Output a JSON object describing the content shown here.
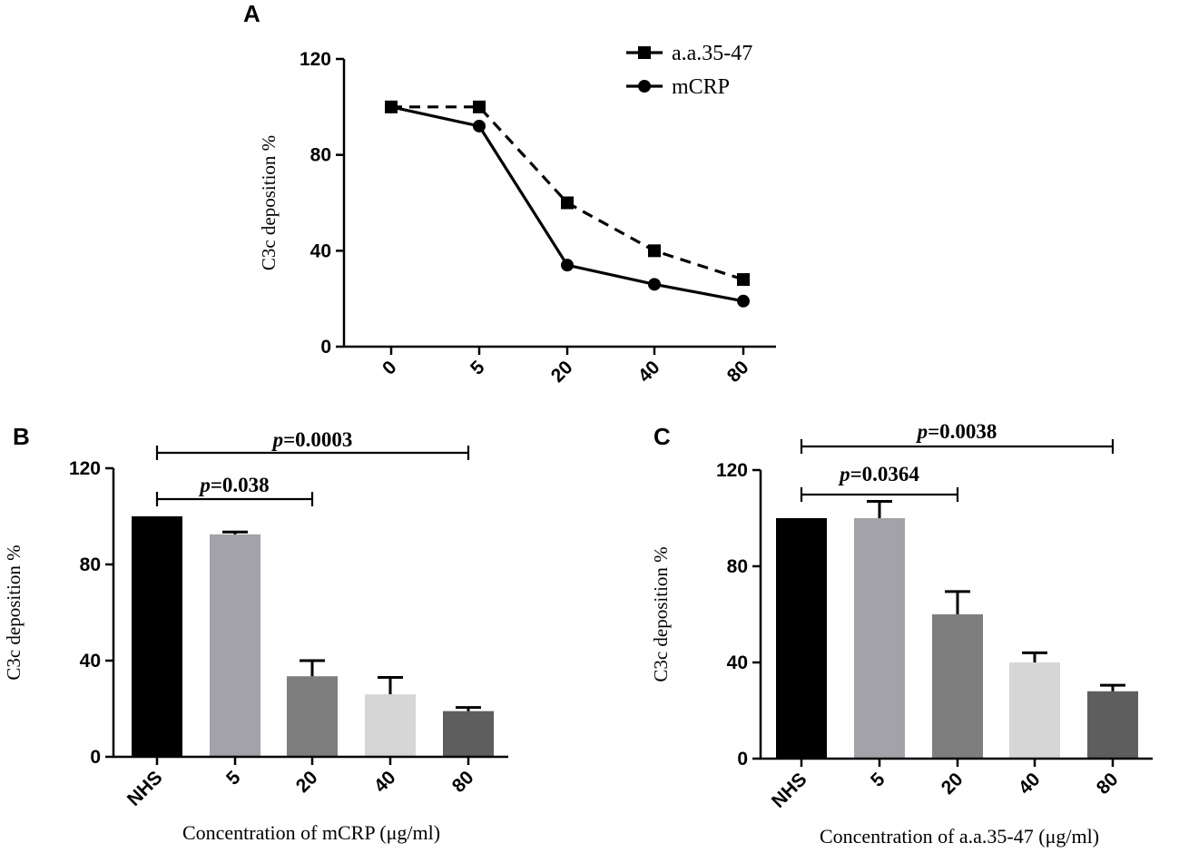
{
  "chart_data": [
    {
      "panel": "A",
      "type": "line",
      "ylabel": "C3c deposition %",
      "xlabel": "",
      "ylim": [
        0,
        120
      ],
      "yticks": [
        0,
        40,
        80,
        120
      ],
      "categories": [
        "0",
        "5",
        "20",
        "40",
        "80"
      ],
      "series": [
        {
          "name": "a.a.35-47",
          "marker": "square",
          "dash": true,
          "values": [
            100,
            100,
            60,
            40,
            28
          ]
        },
        {
          "name": "mCRP",
          "marker": "circle",
          "dash": false,
          "values": [
            100,
            92,
            34,
            26,
            19
          ]
        }
      ],
      "legend": "top-right"
    },
    {
      "panel": "B",
      "type": "bar",
      "ylabel": "C3c deposition %",
      "xlabel": "Concentration of mCRP (μg/ml)",
      "ylim": [
        0,
        120
      ],
      "yticks": [
        0,
        40,
        80,
        120
      ],
      "categories": [
        "NHS",
        "5",
        "20",
        "40",
        "80"
      ],
      "values": [
        100,
        92.5,
        33.5,
        26,
        19
      ],
      "errors": [
        0,
        1,
        6.5,
        7,
        1.5
      ],
      "colors": [
        "#000000",
        "#a3a2a8",
        "#7e7e7e",
        "#d6d6d6",
        "#5e5e5e"
      ],
      "significance": [
        {
          "from": 0,
          "to": 2,
          "p_prefix": "p",
          "p_value": "=0.038"
        },
        {
          "from": 0,
          "to": 4,
          "p_prefix": "p",
          "p_value": "=0.0003"
        }
      ]
    },
    {
      "panel": "C",
      "type": "bar",
      "ylabel": "C3c deposition %",
      "xlabel": "Concentration of a.a.35-47 (μg/ml)",
      "ylim": [
        0,
        120
      ],
      "yticks": [
        0,
        40,
        80,
        120
      ],
      "categories": [
        "NHS",
        "5",
        "20",
        "40",
        "80"
      ],
      "values": [
        100,
        100,
        60,
        40,
        28
      ],
      "errors": [
        0,
        7,
        9.5,
        4,
        2.5
      ],
      "colors": [
        "#000000",
        "#a3a2a8",
        "#7e7e7e",
        "#d6d6d6",
        "#5e5e5e"
      ],
      "significance": [
        {
          "from": 0,
          "to": 2,
          "p_prefix": "p",
          "p_value": "=0.0364"
        },
        {
          "from": 0,
          "to": 4,
          "p_prefix": "p",
          "p_value": "=0.0038"
        }
      ]
    }
  ]
}
